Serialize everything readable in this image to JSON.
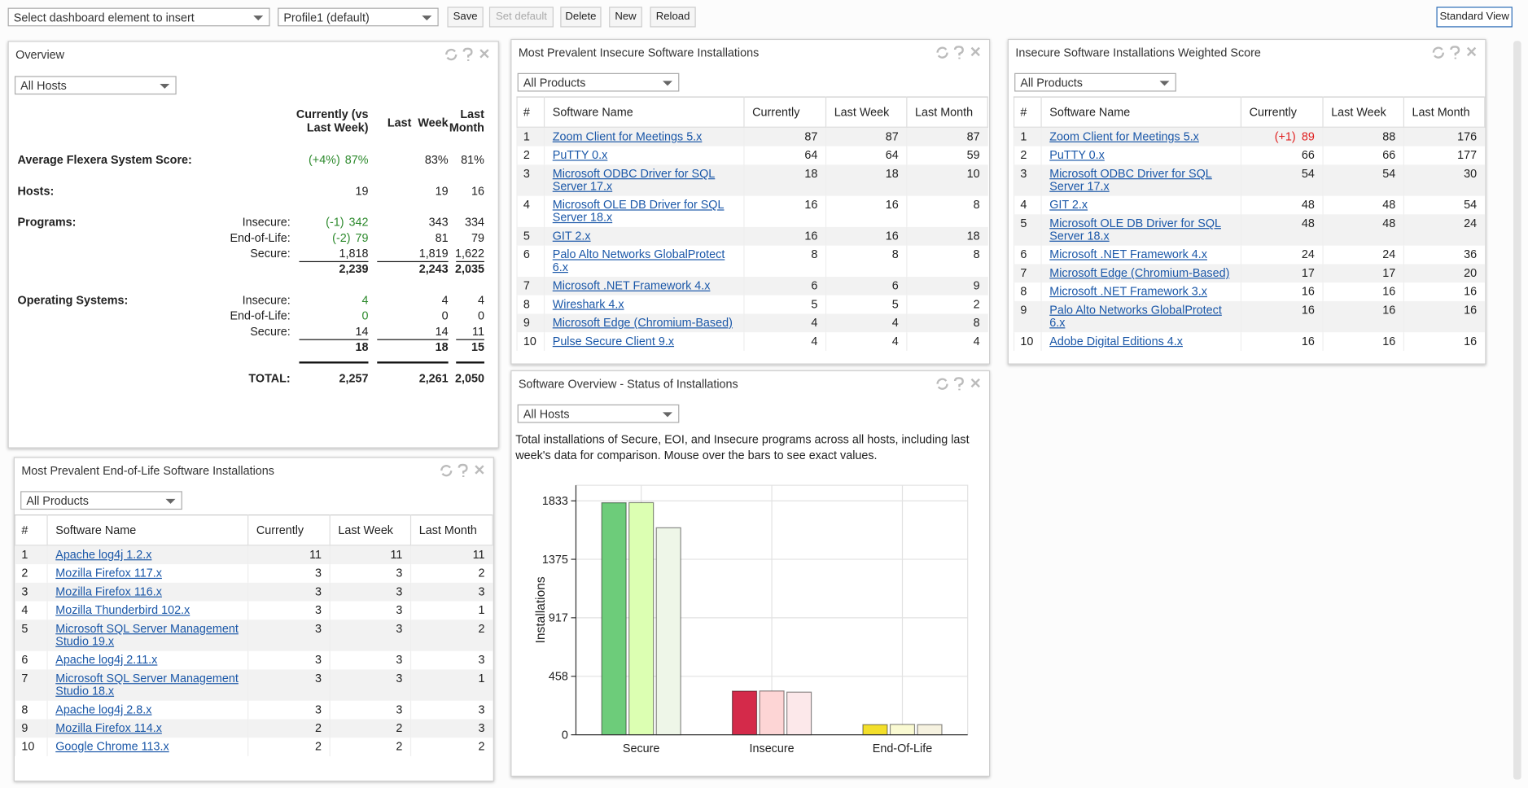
{
  "toolbar": {
    "element_select": "Select dashboard element to insert",
    "profile_select": "Profile1 (default)",
    "buttons": [
      "Save",
      "Set default",
      "Delete",
      "New",
      "Reload"
    ],
    "standard_view": "Standard View"
  },
  "overview": {
    "title": "Overview",
    "filter": "All Hosts",
    "columns": [
      "Currently (vs Last Week)",
      "Last  Week",
      "Last Month"
    ],
    "score": {
      "label": "Average Flexera System Score:",
      "change": "(+4%)",
      "values": [
        "87%",
        "83%",
        "81%"
      ]
    },
    "hosts": {
      "label": "Hosts:",
      "values": [
        "19",
        "19",
        "16"
      ]
    },
    "programs": {
      "label": "Programs:",
      "rows": [
        {
          "label": "Insecure:",
          "change": "(-1)",
          "values": [
            "342",
            "343",
            "334"
          ]
        },
        {
          "label": "End-of-Life:",
          "change": "(-2)",
          "values": [
            "79",
            "81",
            "79"
          ]
        },
        {
          "label": "Secure:",
          "values": [
            "1,818",
            "1,819",
            "1,622"
          ]
        }
      ],
      "totals": [
        "2,239",
        "2,243",
        "2,035"
      ]
    },
    "operating_systems": {
      "label": "Operating Systems:",
      "rows": [
        {
          "label": "Insecure:",
          "values": [
            "4",
            "4",
            "4"
          ]
        },
        {
          "label": "End-of-Life:",
          "values": [
            "0",
            "0",
            "0"
          ]
        },
        {
          "label": "Secure:",
          "values": [
            "14",
            "14",
            "11"
          ]
        }
      ],
      "totals": [
        "18",
        "18",
        "15"
      ]
    },
    "total": {
      "label": "TOTAL:",
      "values": [
        "2,257",
        "2,261",
        "2,050"
      ]
    }
  },
  "eol_panel": {
    "title": "Most Prevalent End-of-Life Software Installations",
    "filter": "All Products",
    "columns": [
      "#",
      "Software Name",
      "Currently",
      "Last Week",
      "Last Month"
    ],
    "rows": [
      {
        "n": "1",
        "name": "Apache log4j 1.2.x",
        "now": "11",
        "week": "11",
        "month": "11"
      },
      {
        "n": "2",
        "name": "Mozilla Firefox 117.x",
        "now": "3",
        "week": "3",
        "month": "2"
      },
      {
        "n": "3",
        "name": "Mozilla Firefox 116.x",
        "now": "3",
        "week": "3",
        "month": "3"
      },
      {
        "n": "4",
        "name": "Mozilla Thunderbird 102.x",
        "now": "3",
        "week": "3",
        "month": "1"
      },
      {
        "n": "5",
        "name": "Microsoft SQL Server Management Studio 19.x",
        "now": "3",
        "week": "3",
        "month": "2"
      },
      {
        "n": "6",
        "name": "Apache log4j 2.11.x",
        "now": "3",
        "week": "3",
        "month": "3"
      },
      {
        "n": "7",
        "name": "Microsoft SQL Server Management Studio 18.x",
        "now": "3",
        "week": "3",
        "month": "1"
      },
      {
        "n": "8",
        "name": "Apache log4j 2.8.x",
        "now": "3",
        "week": "3",
        "month": "3"
      },
      {
        "n": "9",
        "name": "Mozilla Firefox 114.x",
        "now": "2",
        "week": "2",
        "month": "3"
      },
      {
        "n": "10",
        "name": "Google Chrome 113.x",
        "now": "2",
        "week": "2",
        "month": "2"
      }
    ]
  },
  "prevalent_panel": {
    "title": "Most Prevalent Insecure Software Installations",
    "filter": "All Products",
    "columns": [
      "#",
      "Software Name",
      "Currently",
      "Last Week",
      "Last Month"
    ],
    "rows": [
      {
        "n": "1",
        "name": "Zoom Client for Meetings 5.x",
        "now": "87",
        "week": "87",
        "month": "87"
      },
      {
        "n": "2",
        "name": "PuTTY 0.x",
        "now": "64",
        "week": "64",
        "month": "59"
      },
      {
        "n": "3",
        "name": "Microsoft ODBC Driver for SQL Server 17.x",
        "now": "18",
        "week": "18",
        "month": "10"
      },
      {
        "n": "4",
        "name": "Microsoft OLE DB Driver for SQL Server 18.x",
        "now": "16",
        "week": "16",
        "month": "8"
      },
      {
        "n": "5",
        "name": "GIT 2.x",
        "now": "16",
        "week": "16",
        "month": "18"
      },
      {
        "n": "6",
        "name": "Palo Alto Networks GlobalProtect 6.x",
        "now": "8",
        "week": "8",
        "month": "8"
      },
      {
        "n": "7",
        "name": "Microsoft .NET Framework 4.x",
        "now": "6",
        "week": "6",
        "month": "9"
      },
      {
        "n": "8",
        "name": "Wireshark 4.x",
        "now": "5",
        "week": "5",
        "month": "2"
      },
      {
        "n": "9",
        "name": "Microsoft Edge (Chromium-Based)",
        "now": "4",
        "week": "4",
        "month": "8"
      },
      {
        "n": "10",
        "name": "Pulse Secure Client 9.x",
        "now": "4",
        "week": "4",
        "month": "4"
      }
    ]
  },
  "weighted_panel": {
    "title": "Insecure Software Installations Weighted Score",
    "filter": "All Products",
    "columns": [
      "#",
      "Software Name",
      "Currently",
      "Last Week",
      "Last Month"
    ],
    "rows": [
      {
        "n": "1",
        "name": "Zoom Client for Meetings 5.x",
        "change": "(+1)",
        "now": "89",
        "week": "88",
        "month": "176"
      },
      {
        "n": "2",
        "name": "PuTTY 0.x",
        "now": "66",
        "week": "66",
        "month": "177"
      },
      {
        "n": "3",
        "name": "Microsoft ODBC Driver for SQL Server 17.x",
        "now": "54",
        "week": "54",
        "month": "30"
      },
      {
        "n": "4",
        "name": "GIT 2.x",
        "now": "48",
        "week": "48",
        "month": "54"
      },
      {
        "n": "5",
        "name": "Microsoft OLE DB Driver for SQL Server 18.x",
        "now": "48",
        "week": "48",
        "month": "24"
      },
      {
        "n": "6",
        "name": "Microsoft .NET Framework 4.x",
        "now": "24",
        "week": "24",
        "month": "36"
      },
      {
        "n": "7",
        "name": "Microsoft Edge (Chromium-Based)",
        "now": "17",
        "week": "17",
        "month": "20"
      },
      {
        "n": "8",
        "name": "Microsoft .NET Framework 3.x",
        "now": "16",
        "week": "16",
        "month": "16"
      },
      {
        "n": "9",
        "name": "Palo Alto Networks GlobalProtect 6.x",
        "now": "16",
        "week": "16",
        "month": "16"
      },
      {
        "n": "10",
        "name": "Adobe Digital Editions 4.x",
        "now": "16",
        "week": "16",
        "month": "16"
      }
    ]
  },
  "software_overview": {
    "title": "Software Overview - Status of Installations",
    "filter": "All Hosts",
    "description": "Total installations of Secure, EOI, and Insecure programs across all hosts, including last week's data for comparison. Mouse over the bars to see exact values."
  },
  "chart_data": {
    "type": "bar",
    "y_label": "Installations",
    "categories": [
      "Secure",
      "Insecure",
      "End-Of-Life"
    ],
    "series": [
      {
        "colors": [
          "#6dcc7a",
          "#d42a4a",
          "#f3df2b"
        ],
        "values": [
          1818,
          342,
          79
        ]
      },
      {
        "colors": [
          "#dcffb2",
          "#fdd5d5",
          "#fafad2"
        ],
        "values": [
          1819,
          343,
          81
        ]
      },
      {
        "colors": [
          "#eef6e8",
          "#fce8ea",
          "#f6f2e0"
        ],
        "values": [
          1622,
          334,
          79
        ]
      }
    ],
    "ylim": [
      0,
      1955
    ],
    "yticks": [
      0,
      458,
      917,
      1375,
      1833
    ],
    "grid": true
  }
}
